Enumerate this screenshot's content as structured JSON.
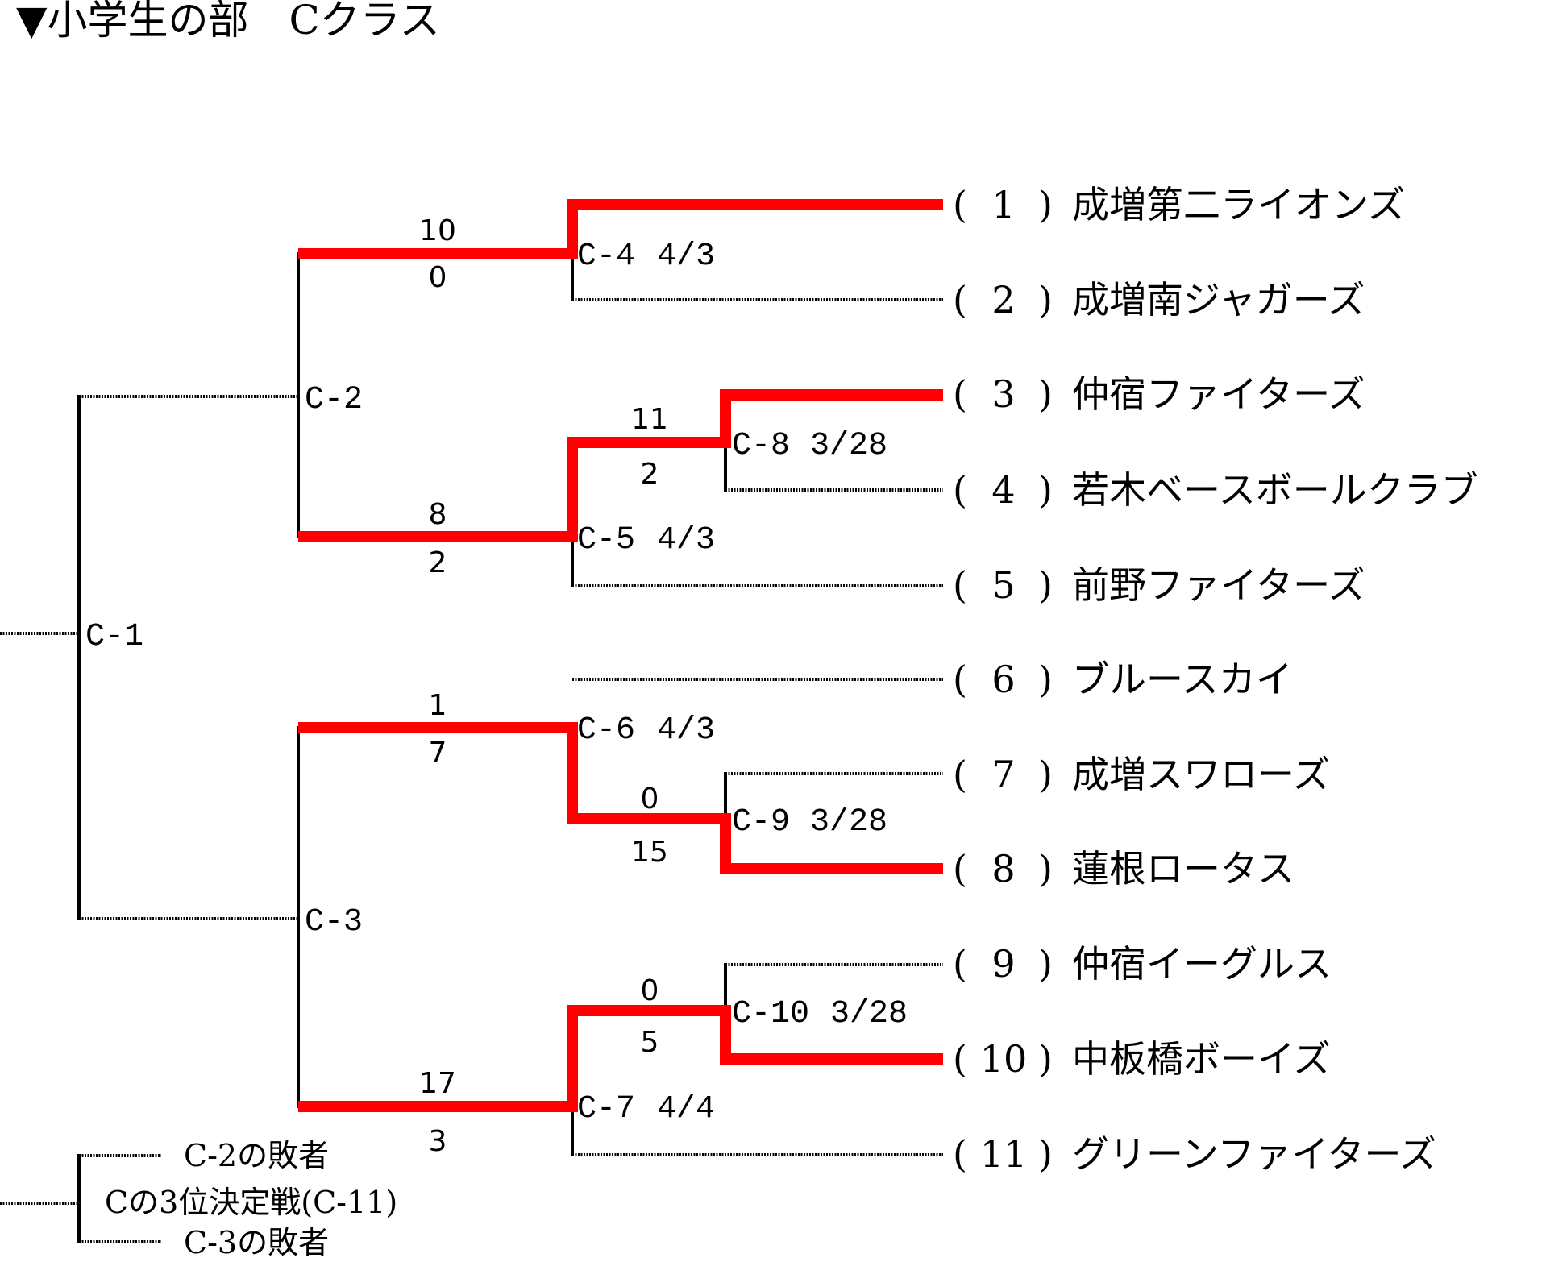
{
  "title": "▼小学生の部　Cクラス",
  "accent_color": "#ff0000",
  "teams": [
    {
      "num": "1",
      "name": "成増第二ライオンズ"
    },
    {
      "num": "2",
      "name": "成増南ジャガーズ"
    },
    {
      "num": "3",
      "name": "仲宿ファイターズ"
    },
    {
      "num": "4",
      "name": "若木ベースボールクラブ"
    },
    {
      "num": "5",
      "name": "前野ファイターズ"
    },
    {
      "num": "6",
      "name": "ブルースカイ"
    },
    {
      "num": "7",
      "name": "成増スワローズ"
    },
    {
      "num": "8",
      "name": "蓮根ロータス"
    },
    {
      "num": "9",
      "name": "仲宿イーグルス"
    },
    {
      "num": "10",
      "name": "中板橋ボーイズ"
    },
    {
      "num": "11",
      "name": "グリーンファイターズ"
    }
  ],
  "matches": {
    "c1": {
      "label": "C-1"
    },
    "c2": {
      "label": "C-2"
    },
    "c3": {
      "label": "C-3"
    },
    "c4": {
      "label": "C-4",
      "date": "4/3"
    },
    "c5": {
      "label": "C-5",
      "date": "4/3"
    },
    "c6": {
      "label": "C-6",
      "date": "4/3"
    },
    "c7": {
      "label": "C-7",
      "date": "4/4"
    },
    "c8": {
      "label": "C-8",
      "date": "3/28"
    },
    "c9": {
      "label": "C-9",
      "date": "3/28"
    },
    "c10": {
      "label": "C-10",
      "date": "3/28"
    }
  },
  "scores": {
    "c8": {
      "top": "11",
      "bottom": "2"
    },
    "c9": {
      "top": "0",
      "bottom": "15"
    },
    "c10": {
      "top": "0",
      "bottom": "5"
    },
    "c2": {
      "top": "10",
      "bottom": "0"
    },
    "c2b": {
      "top": "8",
      "bottom": "2"
    },
    "c3": {
      "top": "1",
      "bottom": "7"
    },
    "c3b": {
      "top": "17",
      "bottom": "3"
    }
  },
  "third_place": {
    "top": "C-2の敗者",
    "middle": "Cの3位決定戦(C-11)",
    "bottom": "C-3の敗者"
  }
}
